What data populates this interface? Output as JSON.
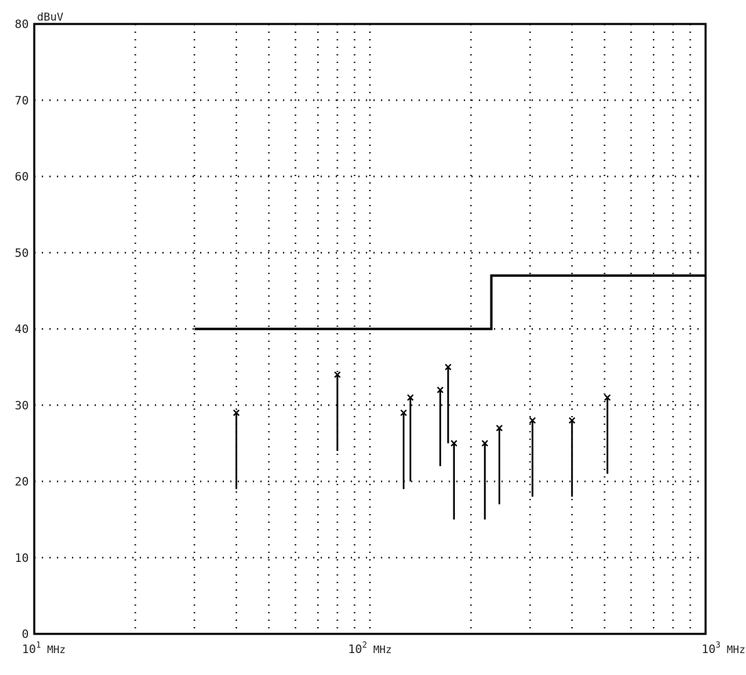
{
  "chart_data": {
    "type": "scatter",
    "title": "",
    "xlabel": "",
    "ylabel": "",
    "y_unit": "dBuV",
    "x_scale": "log",
    "xlim": [
      10,
      1000
    ],
    "ylim": [
      0,
      80
    ],
    "grid": true,
    "x_tick_labels": [
      {
        "value": 10,
        "base": "10",
        "exp": "1",
        "unit": "MHz"
      },
      {
        "value": 100,
        "base": "10",
        "exp": "2",
        "unit": "MHz"
      },
      {
        "value": 1000,
        "base": "10",
        "exp": "3",
        "unit": "MHz"
      }
    ],
    "y_ticks": [
      {
        "value": 0,
        "label": "0"
      },
      {
        "value": 10,
        "label": "10"
      },
      {
        "value": 20,
        "label": "20"
      },
      {
        "value": 30,
        "label": "30"
      },
      {
        "value": 40,
        "label": "40"
      },
      {
        "value": 50,
        "label": "50"
      },
      {
        "value": 60,
        "label": "60"
      },
      {
        "value": 70,
        "label": "70"
      },
      {
        "value": 80,
        "label": "80"
      }
    ],
    "limit_line": {
      "points": [
        [
          30,
          40
        ],
        [
          230,
          40
        ],
        [
          230,
          47
        ],
        [
          1000,
          47
        ]
      ]
    },
    "measurements": [
      {
        "freq": 40,
        "peak": 29,
        "base": 19
      },
      {
        "freq": 80,
        "peak": 34,
        "base": 24
      },
      {
        "freq": 126,
        "peak": 29,
        "base": 19
      },
      {
        "freq": 132,
        "peak": 31,
        "base": 20
      },
      {
        "freq": 162,
        "peak": 32,
        "base": 22
      },
      {
        "freq": 171,
        "peak": 35,
        "base": 25
      },
      {
        "freq": 178,
        "peak": 25,
        "base": 15
      },
      {
        "freq": 220,
        "peak": 25,
        "base": 15
      },
      {
        "freq": 243,
        "peak": 27,
        "base": 17
      },
      {
        "freq": 305,
        "peak": 28,
        "base": 18
      },
      {
        "freq": 400,
        "peak": 28,
        "base": 18
      },
      {
        "freq": 510,
        "peak": 31,
        "base": 21
      }
    ],
    "colors": {
      "trace": "#000000",
      "grid": "#222222",
      "limit": "#000000"
    }
  }
}
